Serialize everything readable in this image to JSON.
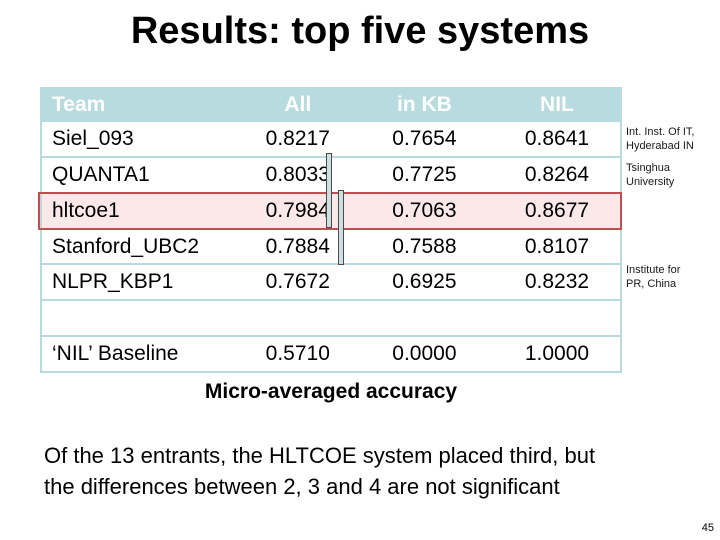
{
  "slide": {
    "title": "Results: top five systems",
    "caption": "Micro-averaged accuracy",
    "body_line1": "Of the 13 entrants, the HLTCOE system placed third, but",
    "body_line2": "the differences between 2, 3 and 4 are not significant",
    "page_number": "45"
  },
  "table": {
    "columns": {
      "team": "Team",
      "all": "All",
      "in_kb": "in KB",
      "nil": "NIL"
    },
    "rows": [
      {
        "team": "Siel_093",
        "all": "0.8217",
        "in_kb": "0.7654",
        "nil": "0.8641"
      },
      {
        "team": "QUANTA1",
        "all": "0.8033",
        "in_kb": "0.7725",
        "nil": "0.8264"
      },
      {
        "team": "hltcoe1",
        "all": "0.7984",
        "in_kb": "0.7063",
        "nil": "0.8677"
      },
      {
        "team": "Stanford_UBC2",
        "all": "0.7884",
        "in_kb": "0.7588",
        "nil": "0.8107"
      },
      {
        "team": "NLPR_KBP1",
        "all": "0.7672",
        "in_kb": "0.6925",
        "nil": "0.8232"
      },
      {
        "team": "",
        "all": "",
        "in_kb": "",
        "nil": ""
      },
      {
        "team": "‘NIL’ Baseline",
        "all": "0.5710",
        "in_kb": "0.0000",
        "nil": "1.0000"
      }
    ],
    "highlighted_team": "hltcoe1"
  },
  "annotations": [
    {
      "line1": "Int. Inst. Of IT,",
      "line2": "Hyderabad IN"
    },
    {
      "line1": "Tsinghua",
      "line2": "University"
    },
    {
      "line1": "Institute for",
      "line2": "PR, China"
    }
  ],
  "colors": {
    "header_bg": "#b8dbe0",
    "highlight_bg": "#fbe9e9",
    "highlight_border": "#c0504d",
    "sig_bar_fill": "#ccdfe3"
  }
}
